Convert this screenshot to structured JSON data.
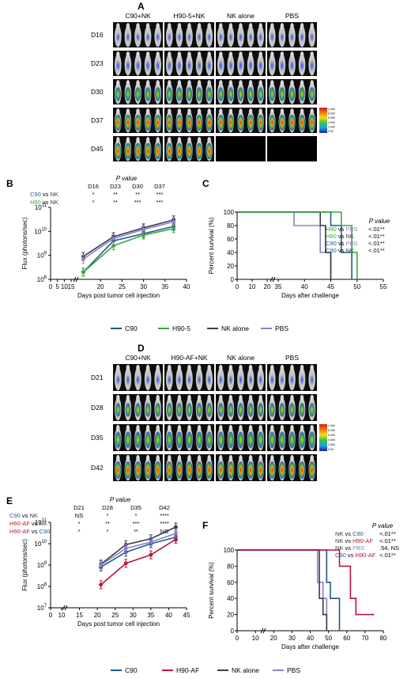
{
  "colors": {
    "c90": "#1f5a8a",
    "h90": "#3aa83a",
    "nk": "#3a3a4a",
    "pbs": "#8a80c8",
    "h90af": "#c0123a"
  },
  "panelA": {
    "letter": "A",
    "headers": [
      "C90+NK",
      "H90-5+NK",
      "NK alone",
      "PBS"
    ],
    "days": [
      "D16",
      "D23",
      "D30",
      "D37",
      "D45"
    ],
    "colorbar_top": "1.0e6",
    "colorbar_bottom": "0.00",
    "colorbar_ticks": [
      "1.0e6",
      "8.0e5",
      "6.0e5",
      "4.0e5",
      "2.0e5",
      "0.00"
    ]
  },
  "panelD": {
    "letter": "D",
    "headers": [
      "C90+NK",
      "H90-AF+NK",
      "NK alone",
      "PBS"
    ],
    "days": [
      "D21",
      "D28",
      "D35",
      "D42"
    ],
    "colorbar_top": "1.0e6",
    "colorbar_bottom": "0.00",
    "colorbar_ticks": [
      "1.0e6",
      "8.0e5",
      "6.0e5",
      "4.0e5",
      "2.0e5",
      "0.00"
    ]
  },
  "legend1": [
    {
      "name": "C90",
      "color": "#1f5a8a"
    },
    {
      "name": "H90-5",
      "color": "#3aa83a"
    },
    {
      "name": "NK alone",
      "color": "#3a3a4a"
    },
    {
      "name": "PBS",
      "color": "#8a80c8"
    }
  ],
  "legend2": [
    {
      "name": "C90",
      "color": "#1f5a8a"
    },
    {
      "name": "H90-AF",
      "color": "#c0123a"
    },
    {
      "name": "NK alone",
      "color": "#3a3a4a"
    },
    {
      "name": "PBS",
      "color": "#8a80c8"
    }
  ],
  "chart_data": [
    {
      "panel": "B",
      "type": "line",
      "ylabel": "Flux (photons/sec)",
      "xlabel": "Days post tumor cell injection",
      "yscale": "log",
      "ylim_exp": [
        8,
        11
      ],
      "y_ticks": [
        "10^8",
        "10^9",
        "10^10",
        "10^11"
      ],
      "x_ticks": [
        0,
        5,
        10,
        15,
        20,
        25,
        30,
        35,
        40
      ],
      "pvalue": {
        "header": "P value",
        "days": [
          "D16",
          "D23",
          "D30",
          "D37"
        ],
        "rows": [
          {
            "a": "C90",
            "b": "NK",
            "values": [
              "*",
              "**",
              "**",
              "***"
            ]
          },
          {
            "a": "H90",
            "b": "NK",
            "values": [
              "*",
              "**",
              "***",
              "***"
            ]
          }
        ]
      },
      "series": [
        {
          "name": "C90",
          "color": "#1f5a8a",
          "x": [
            16,
            23,
            30,
            37
          ],
          "y": [
            200000000.0,
            4000000000.0,
            8000000000.0,
            16000000000.0
          ]
        },
        {
          "name": "H90-5",
          "color": "#3aa83a",
          "x": [
            16,
            23,
            30,
            37
          ],
          "y": [
            200000000.0,
            2500000000.0,
            7000000000.0,
            13000000000.0
          ]
        },
        {
          "name": "NK alone",
          "color": "#3a3a4a",
          "x": [
            16,
            23,
            30,
            37
          ],
          "y": [
            900000000.0,
            6000000000.0,
            14000000000.0,
            30000000000.0
          ]
        },
        {
          "name": "PBS",
          "color": "#8a80c8",
          "x": [
            16,
            23,
            30,
            37
          ],
          "y": [
            700000000.0,
            5000000000.0,
            12000000000.0,
            25000000000.0
          ]
        }
      ]
    },
    {
      "panel": "C",
      "type": "line",
      "ylabel": "Percent survival (%)",
      "xlabel": "Days after challenge",
      "ylim": [
        0,
        100
      ],
      "y_ticks": [
        0,
        20,
        40,
        60,
        80,
        100
      ],
      "x_ticks": [
        0,
        10,
        20,
        35,
        40,
        45,
        50,
        55
      ],
      "pvalue": {
        "header": "P value",
        "rows": [
          {
            "a": "H90",
            "b": "PBS",
            "value": "<.01**"
          },
          {
            "a": "H90",
            "b": "NK",
            "value": "<.01**"
          },
          {
            "a": "C90",
            "b": "PBS",
            "value": "<.01**"
          },
          {
            "a": "C90",
            "b": "NK",
            "value": "<.01**"
          }
        ]
      },
      "series": [
        {
          "name": "PBS",
          "color": "#8a80c8",
          "x": [
            0,
            38,
            38,
            43,
            43,
            45,
            45
          ],
          "y": [
            100,
            100,
            80,
            80,
            40,
            40,
            0
          ]
        },
        {
          "name": "NK alone",
          "color": "#3a3a4a",
          "x": [
            0,
            43,
            43,
            44,
            44,
            45,
            45
          ],
          "y": [
            100,
            100,
            80,
            80,
            40,
            40,
            0
          ]
        },
        {
          "name": "C90",
          "color": "#1f5a8a",
          "x": [
            0,
            45,
            45,
            47,
            47,
            49,
            49
          ],
          "y": [
            100,
            100,
            80,
            80,
            40,
            40,
            0
          ]
        },
        {
          "name": "H90-5",
          "color": "#3aa83a",
          "x": [
            0,
            47,
            47,
            49,
            49,
            50,
            50
          ],
          "y": [
            100,
            100,
            80,
            80,
            40,
            40,
            0
          ]
        }
      ]
    },
    {
      "panel": "E",
      "type": "line",
      "ylabel": "Flux (photons/sec)",
      "xlabel": "Days post tumor cell injection",
      "yscale": "log",
      "ylim_exp": [
        7,
        11
      ],
      "y_ticks": [
        "10^7",
        "10^8",
        "10^9",
        "10^10",
        "10^11"
      ],
      "x_ticks": [
        0,
        10,
        15,
        20,
        25,
        30,
        35,
        40,
        45
      ],
      "pvalue": {
        "header": "P value",
        "days": [
          "D21",
          "D28",
          "D35",
          "D42"
        ],
        "rows": [
          {
            "a": "C90",
            "b": "NK",
            "values": [
              "NS",
              "*",
              "*",
              "****"
            ]
          },
          {
            "a": "H90-AF",
            "b": "NK",
            "values": [
              "*",
              "**",
              "***",
              "****"
            ]
          },
          {
            "a": "H90-AF",
            "b": "C90",
            "values": [
              "*",
              "*",
              "**",
              "NS"
            ]
          }
        ]
      },
      "series": [
        {
          "name": "C90",
          "color": "#1f5a8a",
          "x": [
            21,
            28,
            35,
            42
          ],
          "y": [
            800000000.0,
            4000000000.0,
            10000000000.0,
            20000000000.0
          ]
        },
        {
          "name": "H90-AF",
          "color": "#c0123a",
          "x": [
            21,
            28,
            35,
            42
          ],
          "y": [
            120000000.0,
            1200000000.0,
            3000000000.0,
            16000000000.0
          ]
        },
        {
          "name": "NK alone",
          "color": "#3a3a4a",
          "x": [
            21,
            28,
            35,
            42
          ],
          "y": [
            1100000000.0,
            9000000000.0,
            17000000000.0,
            60000000000.0
          ]
        },
        {
          "name": "PBS",
          "color": "#8a80c8",
          "x": [
            21,
            28,
            35,
            42
          ],
          "y": [
            1000000000.0,
            6000000000.0,
            12000000000.0,
            30000000000.0
          ]
        }
      ]
    },
    {
      "panel": "F",
      "type": "line",
      "ylabel": "Percent survival (%)",
      "xlabel": "Days after challenge",
      "ylim": [
        0,
        100
      ],
      "y_ticks": [
        0,
        20,
        40,
        60,
        80,
        100
      ],
      "x_ticks": [
        0,
        10,
        20,
        30,
        40,
        50,
        60,
        70,
        80
      ],
      "pvalue": {
        "header": "P value",
        "rows": [
          {
            "a": "NK",
            "b": "C90",
            "value": "<.01**"
          },
          {
            "a": "NK",
            "b": "H90-AF",
            "value": "<.01**"
          },
          {
            "a": "NK",
            "b": "PBS",
            "value": ".54, NS"
          },
          {
            "a": "C90",
            "b": "H90-AF",
            "value": "<.01**"
          }
        ]
      },
      "series": [
        {
          "name": "PBS",
          "color": "#8a80c8",
          "x": [
            0,
            44,
            44,
            47,
            47,
            49,
            49
          ],
          "y": [
            100,
            100,
            60,
            60,
            40,
            40,
            0
          ]
        },
        {
          "name": "NK alone",
          "color": "#3a3a4a",
          "x": [
            0,
            45,
            45,
            47,
            47,
            49,
            49
          ],
          "y": [
            100,
            100,
            40,
            40,
            20,
            20,
            0
          ]
        },
        {
          "name": "C90",
          "color": "#1f5a8a",
          "x": [
            0,
            49,
            49,
            51,
            51,
            56,
            56
          ],
          "y": [
            100,
            100,
            60,
            60,
            40,
            40,
            0
          ]
        },
        {
          "name": "H90-AF",
          "color": "#c0123a",
          "x": [
            0,
            56,
            56,
            62,
            62,
            65,
            65,
            75
          ],
          "y": [
            100,
            100,
            80,
            80,
            40,
            40,
            20,
            20
          ]
        }
      ]
    }
  ]
}
